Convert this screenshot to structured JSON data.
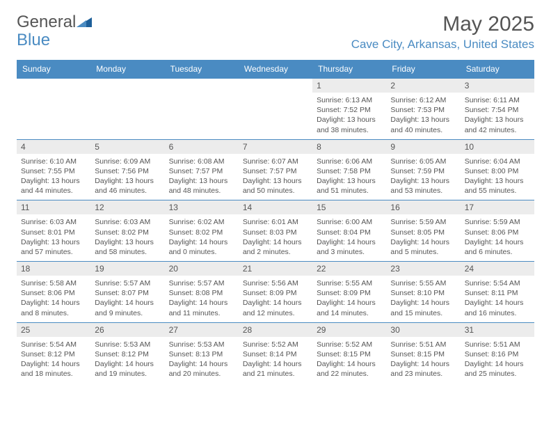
{
  "logo": {
    "text1": "General",
    "text2": "Blue",
    "color_general": "#6a6a6a",
    "color_blue": "#4a8bc2",
    "icon_color": "#1d5f99"
  },
  "header": {
    "month_title": "May 2025",
    "location": "Cave City, Arkansas, United States"
  },
  "style": {
    "header_bg": "#4a8bc2",
    "header_text": "#ffffff",
    "daynum_bg": "#ececec",
    "text_color": "#555555",
    "rule_color": "#4a8bc2"
  },
  "day_names": [
    "Sunday",
    "Monday",
    "Tuesday",
    "Wednesday",
    "Thursday",
    "Friday",
    "Saturday"
  ],
  "weeks": [
    [
      {
        "empty": true
      },
      {
        "empty": true
      },
      {
        "empty": true
      },
      {
        "empty": true
      },
      {
        "n": "1",
        "sunrise": "Sunrise: 6:13 AM",
        "sunset": "Sunset: 7:52 PM",
        "day1": "Daylight: 13 hours",
        "day2": "and 38 minutes."
      },
      {
        "n": "2",
        "sunrise": "Sunrise: 6:12 AM",
        "sunset": "Sunset: 7:53 PM",
        "day1": "Daylight: 13 hours",
        "day2": "and 40 minutes."
      },
      {
        "n": "3",
        "sunrise": "Sunrise: 6:11 AM",
        "sunset": "Sunset: 7:54 PM",
        "day1": "Daylight: 13 hours",
        "day2": "and 42 minutes."
      }
    ],
    [
      {
        "n": "4",
        "sunrise": "Sunrise: 6:10 AM",
        "sunset": "Sunset: 7:55 PM",
        "day1": "Daylight: 13 hours",
        "day2": "and 44 minutes."
      },
      {
        "n": "5",
        "sunrise": "Sunrise: 6:09 AM",
        "sunset": "Sunset: 7:56 PM",
        "day1": "Daylight: 13 hours",
        "day2": "and 46 minutes."
      },
      {
        "n": "6",
        "sunrise": "Sunrise: 6:08 AM",
        "sunset": "Sunset: 7:57 PM",
        "day1": "Daylight: 13 hours",
        "day2": "and 48 minutes."
      },
      {
        "n": "7",
        "sunrise": "Sunrise: 6:07 AM",
        "sunset": "Sunset: 7:57 PM",
        "day1": "Daylight: 13 hours",
        "day2": "and 50 minutes."
      },
      {
        "n": "8",
        "sunrise": "Sunrise: 6:06 AM",
        "sunset": "Sunset: 7:58 PM",
        "day1": "Daylight: 13 hours",
        "day2": "and 51 minutes."
      },
      {
        "n": "9",
        "sunrise": "Sunrise: 6:05 AM",
        "sunset": "Sunset: 7:59 PM",
        "day1": "Daylight: 13 hours",
        "day2": "and 53 minutes."
      },
      {
        "n": "10",
        "sunrise": "Sunrise: 6:04 AM",
        "sunset": "Sunset: 8:00 PM",
        "day1": "Daylight: 13 hours",
        "day2": "and 55 minutes."
      }
    ],
    [
      {
        "n": "11",
        "sunrise": "Sunrise: 6:03 AM",
        "sunset": "Sunset: 8:01 PM",
        "day1": "Daylight: 13 hours",
        "day2": "and 57 minutes."
      },
      {
        "n": "12",
        "sunrise": "Sunrise: 6:03 AM",
        "sunset": "Sunset: 8:02 PM",
        "day1": "Daylight: 13 hours",
        "day2": "and 58 minutes."
      },
      {
        "n": "13",
        "sunrise": "Sunrise: 6:02 AM",
        "sunset": "Sunset: 8:02 PM",
        "day1": "Daylight: 14 hours",
        "day2": "and 0 minutes."
      },
      {
        "n": "14",
        "sunrise": "Sunrise: 6:01 AM",
        "sunset": "Sunset: 8:03 PM",
        "day1": "Daylight: 14 hours",
        "day2": "and 2 minutes."
      },
      {
        "n": "15",
        "sunrise": "Sunrise: 6:00 AM",
        "sunset": "Sunset: 8:04 PM",
        "day1": "Daylight: 14 hours",
        "day2": "and 3 minutes."
      },
      {
        "n": "16",
        "sunrise": "Sunrise: 5:59 AM",
        "sunset": "Sunset: 8:05 PM",
        "day1": "Daylight: 14 hours",
        "day2": "and 5 minutes."
      },
      {
        "n": "17",
        "sunrise": "Sunrise: 5:59 AM",
        "sunset": "Sunset: 8:06 PM",
        "day1": "Daylight: 14 hours",
        "day2": "and 6 minutes."
      }
    ],
    [
      {
        "n": "18",
        "sunrise": "Sunrise: 5:58 AM",
        "sunset": "Sunset: 8:06 PM",
        "day1": "Daylight: 14 hours",
        "day2": "and 8 minutes."
      },
      {
        "n": "19",
        "sunrise": "Sunrise: 5:57 AM",
        "sunset": "Sunset: 8:07 PM",
        "day1": "Daylight: 14 hours",
        "day2": "and 9 minutes."
      },
      {
        "n": "20",
        "sunrise": "Sunrise: 5:57 AM",
        "sunset": "Sunset: 8:08 PM",
        "day1": "Daylight: 14 hours",
        "day2": "and 11 minutes."
      },
      {
        "n": "21",
        "sunrise": "Sunrise: 5:56 AM",
        "sunset": "Sunset: 8:09 PM",
        "day1": "Daylight: 14 hours",
        "day2": "and 12 minutes."
      },
      {
        "n": "22",
        "sunrise": "Sunrise: 5:55 AM",
        "sunset": "Sunset: 8:09 PM",
        "day1": "Daylight: 14 hours",
        "day2": "and 14 minutes."
      },
      {
        "n": "23",
        "sunrise": "Sunrise: 5:55 AM",
        "sunset": "Sunset: 8:10 PM",
        "day1": "Daylight: 14 hours",
        "day2": "and 15 minutes."
      },
      {
        "n": "24",
        "sunrise": "Sunrise: 5:54 AM",
        "sunset": "Sunset: 8:11 PM",
        "day1": "Daylight: 14 hours",
        "day2": "and 16 minutes."
      }
    ],
    [
      {
        "n": "25",
        "sunrise": "Sunrise: 5:54 AM",
        "sunset": "Sunset: 8:12 PM",
        "day1": "Daylight: 14 hours",
        "day2": "and 18 minutes."
      },
      {
        "n": "26",
        "sunrise": "Sunrise: 5:53 AM",
        "sunset": "Sunset: 8:12 PM",
        "day1": "Daylight: 14 hours",
        "day2": "and 19 minutes."
      },
      {
        "n": "27",
        "sunrise": "Sunrise: 5:53 AM",
        "sunset": "Sunset: 8:13 PM",
        "day1": "Daylight: 14 hours",
        "day2": "and 20 minutes."
      },
      {
        "n": "28",
        "sunrise": "Sunrise: 5:52 AM",
        "sunset": "Sunset: 8:14 PM",
        "day1": "Daylight: 14 hours",
        "day2": "and 21 minutes."
      },
      {
        "n": "29",
        "sunrise": "Sunrise: 5:52 AM",
        "sunset": "Sunset: 8:15 PM",
        "day1": "Daylight: 14 hours",
        "day2": "and 22 minutes."
      },
      {
        "n": "30",
        "sunrise": "Sunrise: 5:51 AM",
        "sunset": "Sunset: 8:15 PM",
        "day1": "Daylight: 14 hours",
        "day2": "and 23 minutes."
      },
      {
        "n": "31",
        "sunrise": "Sunrise: 5:51 AM",
        "sunset": "Sunset: 8:16 PM",
        "day1": "Daylight: 14 hours",
        "day2": "and 25 minutes."
      }
    ]
  ]
}
